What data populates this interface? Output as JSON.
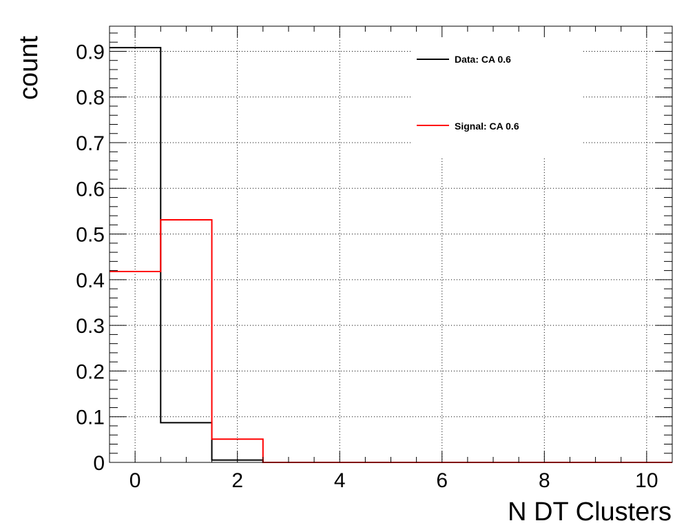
{
  "chart_data": {
    "type": "histogram",
    "xlabel": "N DT Clusters",
    "ylabel": "count",
    "xlim": [
      -0.5,
      10.5
    ],
    "ylim": [
      0,
      0.955
    ],
    "grid": true,
    "legend_position": "top-right",
    "x_ticks": [
      "0",
      "2",
      "4",
      "6",
      "8",
      "10"
    ],
    "y_ticks": [
      "0",
      "0.1",
      "0.2",
      "0.3",
      "0.4",
      "0.5",
      "0.6",
      "0.7",
      "0.8",
      "0.9"
    ],
    "bin_edges": [
      -0.5,
      0.5,
      1.5,
      2.5,
      3.5,
      4.5,
      5.5,
      6.5,
      7.5,
      8.5,
      9.5,
      10.5
    ],
    "series": [
      {
        "name": "Data: CA 0.6",
        "color": "#000000",
        "values": [
          0.908,
          0.087,
          0.005,
          0,
          0,
          0,
          0,
          0,
          0,
          0,
          0
        ]
      },
      {
        "name": "Signal: CA 0.6",
        "color": "#ff0000",
        "values": [
          0.418,
          0.531,
          0.051,
          0,
          0,
          0,
          0,
          0,
          0,
          0,
          0
        ]
      }
    ]
  }
}
